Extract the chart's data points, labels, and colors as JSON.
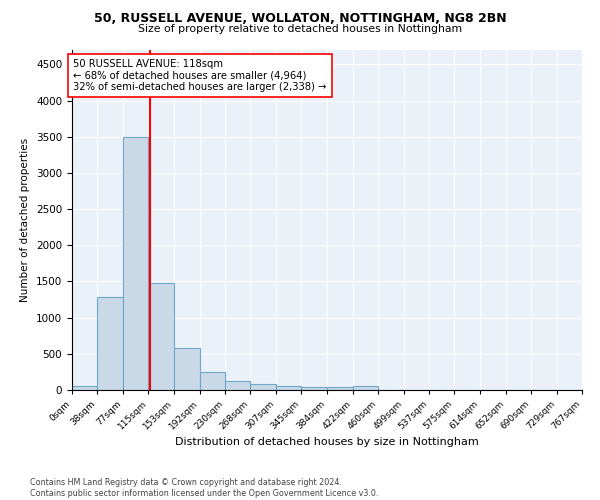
{
  "title1": "50, RUSSELL AVENUE, WOLLATON, NOTTINGHAM, NG8 2BN",
  "title2": "Size of property relative to detached houses in Nottingham",
  "xlabel": "Distribution of detached houses by size in Nottingham",
  "ylabel": "Number of detached properties",
  "bin_edges": [
    0,
    38,
    77,
    115,
    153,
    192,
    230,
    268,
    307,
    345,
    384,
    422,
    460,
    499,
    537,
    575,
    614,
    652,
    690,
    729,
    767
  ],
  "bar_heights": [
    50,
    1280,
    3500,
    1480,
    580,
    250,
    130,
    80,
    55,
    40,
    40,
    50,
    0,
    0,
    0,
    0,
    0,
    0,
    0,
    0
  ],
  "bar_color": "#c9d9e8",
  "bar_edge_color": "#6fa8c8",
  "bar_linewidth": 0.8,
  "vline_x": 118,
  "vline_color": "red",
  "vline_linewidth": 1.5,
  "annotation_text": "50 RUSSELL AVENUE: 118sqm\n← 68% of detached houses are smaller (4,964)\n32% of semi-detached houses are larger (2,338) →",
  "annotation_box_color": "white",
  "annotation_box_edgecolor": "red",
  "ylim": [
    0,
    4700
  ],
  "yticks": [
    0,
    500,
    1000,
    1500,
    2000,
    2500,
    3000,
    3500,
    4000,
    4500
  ],
  "bg_color": "#eaf1f8",
  "footnote": "Contains HM Land Registry data © Crown copyright and database right 2024.\nContains public sector information licensed under the Open Government Licence v3.0.",
  "tick_labels": [
    "0sqm",
    "38sqm",
    "77sqm",
    "115sqm",
    "153sqm",
    "192sqm",
    "230sqm",
    "268sqm",
    "307sqm",
    "345sqm",
    "384sqm",
    "422sqm",
    "460sqm",
    "499sqm",
    "537sqm",
    "575sqm",
    "614sqm",
    "652sqm",
    "690sqm",
    "729sqm",
    "767sqm"
  ]
}
